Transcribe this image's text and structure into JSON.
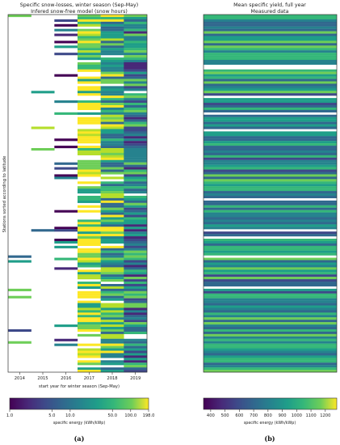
{
  "chart_data": [
    {
      "type": "heatmap",
      "title": "Specific snow-losses, winter season (Sep-May)",
      "subtitle": "Infered snow-free model (snow hours)",
      "xlabel": "start year for winter season (Sep-May)",
      "ylabel": "Stations sorted according to latitude",
      "x": [
        "2014",
        "2015",
        "2016",
        "2017",
        "2018",
        "2019"
      ],
      "colorbar": {
        "label": "specific energy (kWh/kWp)",
        "scale": "log",
        "range": [
          1.0,
          198.0
        ],
        "ticks": [
          "1.0",
          "5.0",
          "10.0",
          "50.0",
          "100.0",
          "198.0"
        ],
        "colormap": "viridis"
      },
      "caption": "(a)"
    },
    {
      "type": "heatmap",
      "title": "Mean specific yield, full year",
      "subtitle": "Measured data",
      "colorbar": {
        "label": "specific energy (kWh/kWp)",
        "scale": "linear",
        "range": [
          350,
          1280
        ],
        "ticks": [
          "400",
          "500",
          "600",
          "700",
          "800",
          "900",
          "1000",
          "1100",
          "1200"
        ],
        "colormap": "viridis"
      },
      "caption": "(b)"
    }
  ]
}
